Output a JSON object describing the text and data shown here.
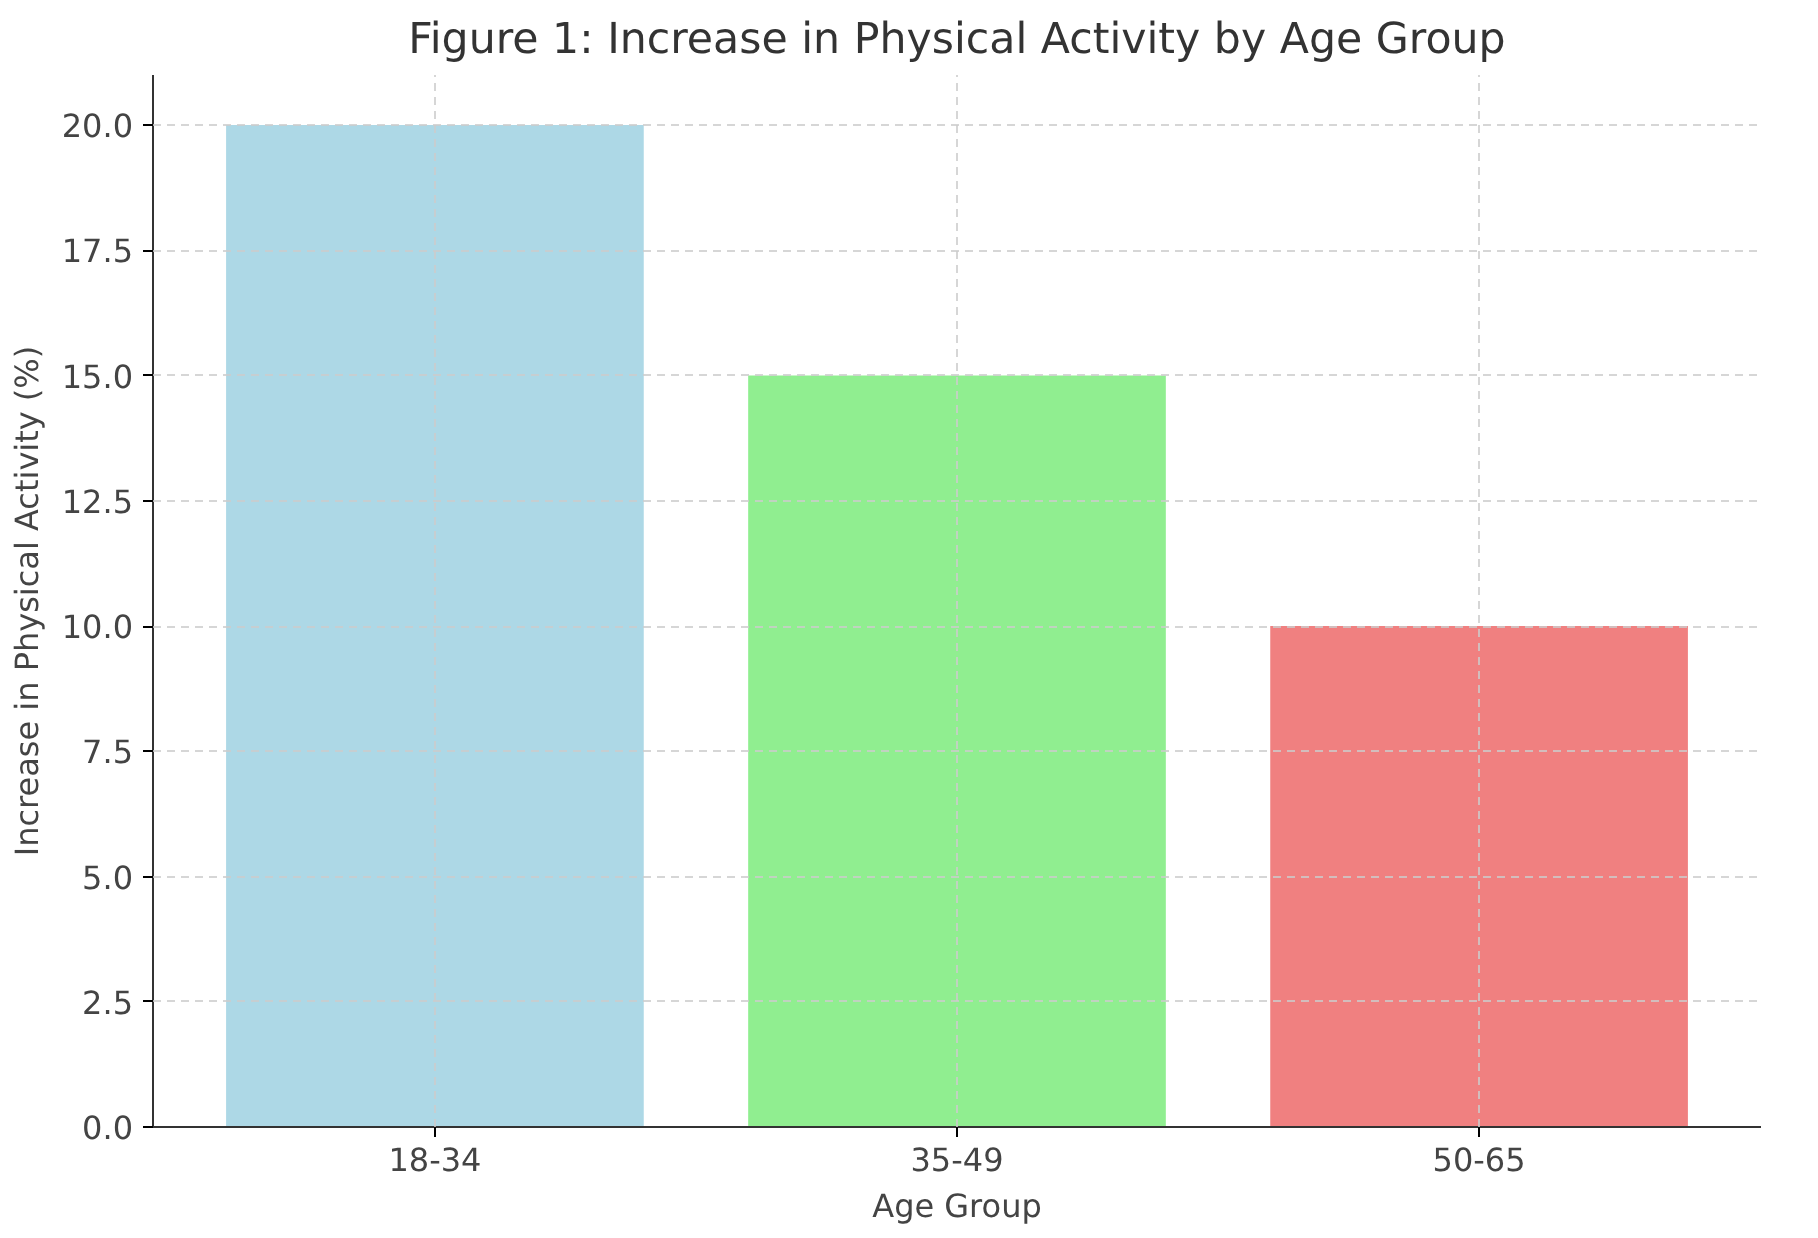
{
  "chart_data": {
    "type": "bar",
    "title": "Figure 1: Increase in Physical Activity by Age Group",
    "xlabel": "Age Group",
    "ylabel": "Increase in Physical Activity (%)",
    "categories": [
      "18-34",
      "35-49",
      "50-65"
    ],
    "values": [
      20,
      15,
      10
    ],
    "colors": [
      "#add8e6",
      "#90ee90",
      "#f08080"
    ],
    "ylim": [
      0,
      21
    ],
    "yticks": [
      {
        "value": 0,
        "label": "0.0"
      },
      {
        "value": 2.5,
        "label": "2.5"
      },
      {
        "value": 5,
        "label": "5.0"
      },
      {
        "value": 7.5,
        "label": "7.5"
      },
      {
        "value": 10,
        "label": "10.0"
      },
      {
        "value": 12.5,
        "label": "12.5"
      },
      {
        "value": 15,
        "label": "15.0"
      },
      {
        "value": 17.5,
        "label": "17.5"
      },
      {
        "value": 20,
        "label": "20.0"
      }
    ],
    "grid": true
  }
}
